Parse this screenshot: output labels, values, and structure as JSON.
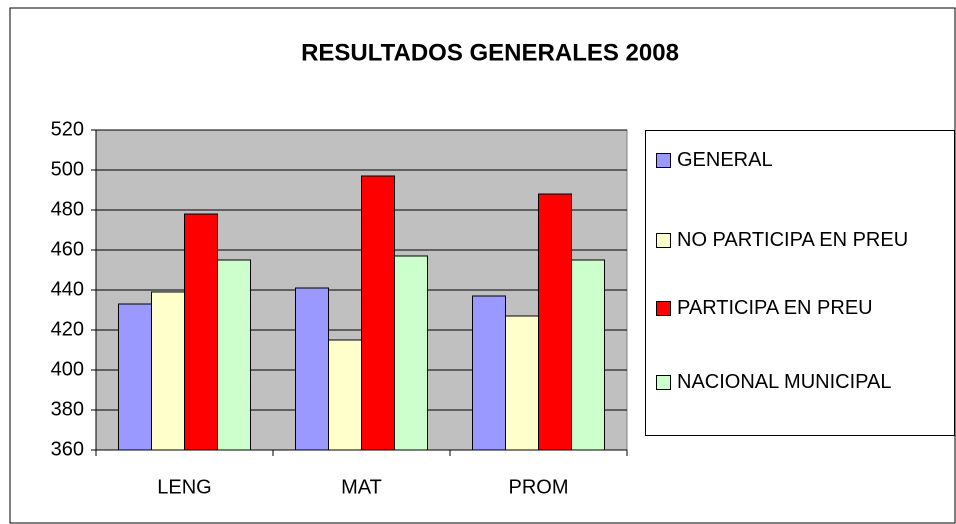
{
  "chart_data": {
    "type": "bar",
    "title": "RESULTADOS GENERALES 2008",
    "categories": [
      "LENG",
      "MAT",
      "PROM"
    ],
    "series": [
      {
        "name": "GENERAL",
        "color": "#9999ff",
        "values": [
          433,
          441,
          437
        ]
      },
      {
        "name": "NO PARTICIPA EN PREU",
        "color": "#ffffcc",
        "values": [
          439,
          415,
          427
        ]
      },
      {
        "name": "PARTICIPA EN PREU",
        "color": "#ff0000",
        "values": [
          478,
          497,
          488
        ]
      },
      {
        "name": "NACIONAL MUNICIPAL",
        "color": "#ccffcc",
        "values": [
          455,
          457,
          455
        ]
      }
    ],
    "ylim": [
      360,
      520
    ],
    "yticks": [
      360,
      380,
      400,
      420,
      440,
      460,
      480,
      500,
      520
    ],
    "grid": true,
    "legend": "right"
  }
}
